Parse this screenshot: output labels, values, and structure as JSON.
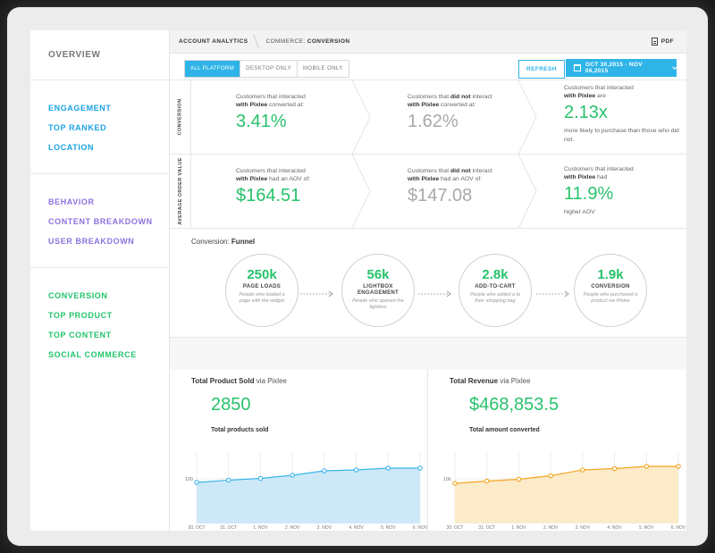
{
  "sidebar": {
    "overview": [
      "OVERVIEW"
    ],
    "engagement": [
      "ENGAGEMENT",
      "TOP RANKED",
      "LOCATION"
    ],
    "behavior": [
      "BEHAVIOR",
      "CONTENT BREAKDOWN",
      "USER BREAKDOWN"
    ],
    "conversion": [
      "CONVERSION",
      "TOP PRODUCT",
      "TOP CONTENT",
      "SOCIAL COMMERCE"
    ]
  },
  "breadcrumb": {
    "first": "ACCOUNT ANALYTICS",
    "second_prefix": "COMMERCE:",
    "second": "CONVERSION"
  },
  "pdf_label": "PDF",
  "toolbar": {
    "segments": [
      "ALL PLATFORM",
      "DESKTOP ONLY",
      "MOBILE ONLY"
    ],
    "refresh": "REFRESH",
    "date_range": "OCT 30,2015 - NOV 06,2015"
  },
  "conversion_row": {
    "label": "CONVERSION",
    "c1": {
      "desc_a": "Customers that interacted",
      "desc_b_bold": "with Pixlee",
      "desc_c": " converted at:",
      "value": "3.41%"
    },
    "c2": {
      "desc_a": "Customers that ",
      "desc_a_bold": "did not",
      "desc_a2": " interact",
      "desc_b_bold": "with Pixlee",
      "desc_c": " converted at:",
      "value": "1.62%"
    },
    "c3": {
      "desc_a": "Customers that interacted",
      "desc_b_bold": "with Pixlee",
      "desc_c": " are",
      "value": "2.13x",
      "sub": "more likely to purchase than those who did not."
    }
  },
  "aov_row": {
    "label": "AVERAGE ORDER VALUE",
    "c1": {
      "desc_a": "Customers that interacted",
      "desc_b_bold": "with Pixlee",
      "desc_c": " had an AOV of:",
      "value": "$164.51"
    },
    "c2": {
      "desc_a": "Customers that ",
      "desc_a_bold": "did not",
      "desc_a2": " interact",
      "desc_b_bold": "with Pixlee",
      "desc_c": " had an AOV of:",
      "value": "$147.08"
    },
    "c3": {
      "desc_a": "Customers that interacted",
      "desc_b_bold": "with Pixlee",
      "desc_c": " had",
      "value": "11.9%",
      "sub": "higher AOV"
    }
  },
  "funnel": {
    "title_prefix": "Conversion: ",
    "title_bold": "Funnel",
    "steps": [
      {
        "value": "250k",
        "label": "PAGE LOADS",
        "desc": "People who loaded a page with the widget"
      },
      {
        "value": "56k",
        "label": "LIGHTBOX ENGAGEMENT",
        "desc": "People who opened the lightbox"
      },
      {
        "value": "2.8k",
        "label": "ADD-TO-CART",
        "desc": "People who added a to their shopping bag"
      },
      {
        "value": "1.9k",
        "label": "CONVERSION",
        "desc": "People who purchased a product via Pixlee"
      }
    ]
  },
  "products_panel": {
    "title_bold": "Total Product Sold",
    "title_rest": " via Pixlee",
    "big_value": "2850",
    "subtitle": "Total products sold"
  },
  "revenue_panel": {
    "title_bold": "Total Revenue",
    "title_rest": " via Pixlee",
    "big_value": "$468,853.5",
    "subtitle": "Total amount converted"
  },
  "chart_data": [
    {
      "type": "area",
      "categories": [
        "30. OCT",
        "31. OCT",
        "1. NOV",
        "2. NOV",
        "3. NOV",
        "4. NOV",
        "5. NOV",
        "6. NOV"
      ],
      "values": [
        92,
        97,
        101,
        108,
        118,
        120,
        124,
        124
      ],
      "ytick_labels": [
        "100"
      ],
      "ytick_values": [
        100
      ],
      "ylim": [
        0,
        160
      ],
      "color": "#3bb6ea",
      "fill": "#cde9f8"
    },
    {
      "type": "area",
      "categories": [
        "30. OCT",
        "31. OCT",
        "1. NOV",
        "2. NOV",
        "3. NOV",
        "4. NOV",
        "5. NOV",
        "6. NOV"
      ],
      "values": [
        9.0,
        9.5,
        9.9,
        10.7,
        12.0,
        12.3,
        12.8,
        12.8
      ],
      "ytick_labels": [
        "10k"
      ],
      "ytick_values": [
        10
      ],
      "ylim": [
        0,
        16
      ],
      "color": "#f2a623",
      "fill": "#fbebc9"
    }
  ]
}
